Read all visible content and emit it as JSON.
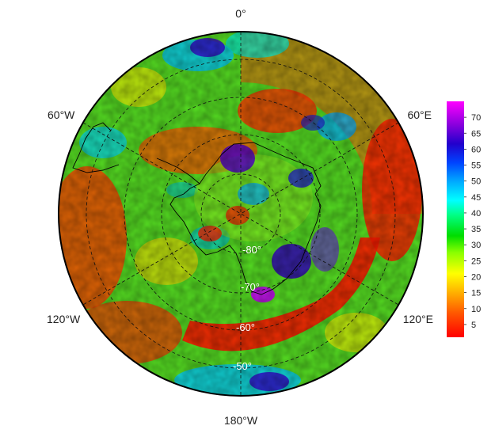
{
  "map": {
    "projection": "south-polar-stereographic",
    "longitude_labels": {
      "top": "0°",
      "upper_right": "60°E",
      "lower_right": "120°E",
      "bottom": "180°W",
      "lower_left": "120°W",
      "upper_left": "60°W"
    },
    "latitude_labels": [
      "-80°",
      "-70°",
      "-60°",
      "-50°"
    ],
    "graticule": "dashed"
  },
  "colorbar": {
    "ticks": [
      "5",
      "10",
      "15",
      "20",
      "25",
      "30",
      "35",
      "40",
      "45",
      "50",
      "55",
      "60",
      "65",
      "70"
    ],
    "range": [
      1,
      75
    ],
    "colors": [
      "#ff0000",
      "#ff6600",
      "#ffcc00",
      "#ffff00",
      "#88ff00",
      "#00dd00",
      "#00ff88",
      "#00ffff",
      "#00aaff",
      "#0044ff",
      "#2200cc",
      "#6600cc",
      "#aa00dd",
      "#ff00ff"
    ]
  }
}
